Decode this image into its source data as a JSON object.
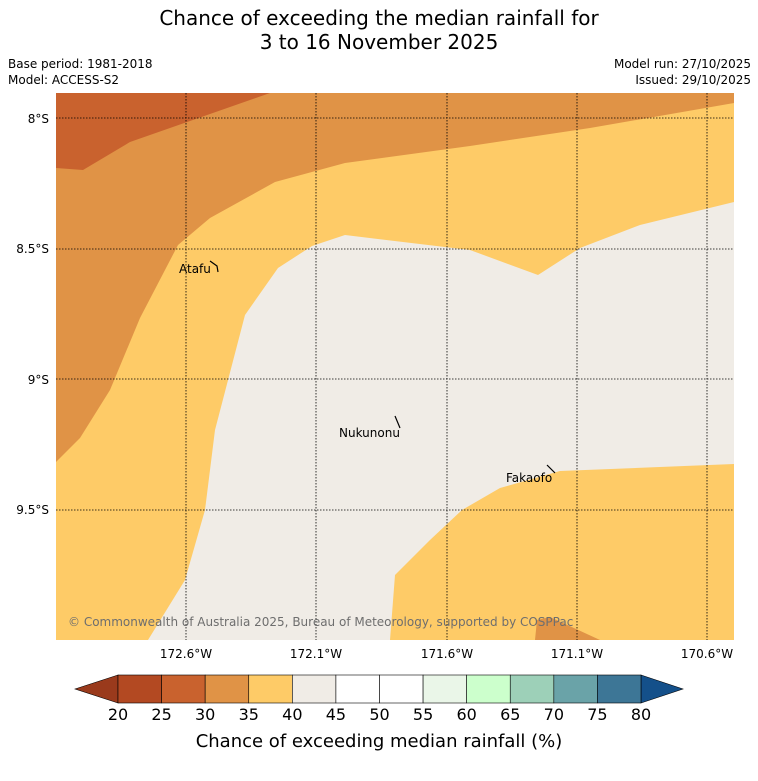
{
  "title": {
    "line1": "Chance of exceeding the median rainfall for",
    "line2": "3 to 16 November 2025"
  },
  "meta": {
    "base_period": "Base period: 1981-2018",
    "model": "Model: ACCESS-S2",
    "model_run": "Model run: 27/10/2025",
    "issued": "Issued: 29/10/2025"
  },
  "map": {
    "lat_labels": [
      "8°S",
      "8.5°S",
      "9°S",
      "9.5°S"
    ],
    "lon_labels": [
      "172.6°W",
      "172.1°W",
      "171.6°W",
      "171.1°W",
      "170.6°W"
    ],
    "places": [
      "Atafu",
      "Nukunonu",
      "Fakaofo"
    ],
    "credit": "© Commonwealth of Australia 2025, Bureau of Meteorology, supported by COSPPac",
    "category_colors": {
      "20-25": "#b44f27",
      "25-30": "#c9622e",
      "30-35": "#e09346",
      "35-40": "#fecb67",
      "40-60": "#f0ece6",
      "60-65": "#ccffcc"
    }
  },
  "colorbar": {
    "ticks": [
      "20",
      "25",
      "30",
      "35",
      "40",
      "45",
      "50",
      "55",
      "60",
      "65",
      "70",
      "75",
      "80"
    ],
    "colors": [
      "#b34922",
      "#c9622e",
      "#e09346",
      "#fecb67",
      "#f0ece6",
      "#ffffff",
      "#ffffff",
      "#eaf6e8",
      "#ccffcc",
      "#9dd0b8",
      "#6aa3a8",
      "#3d7696"
    ],
    "under_color": "#9a3a1c",
    "over_color": "#14508a",
    "title": "Chance of exceeding median rainfall (%)"
  }
}
